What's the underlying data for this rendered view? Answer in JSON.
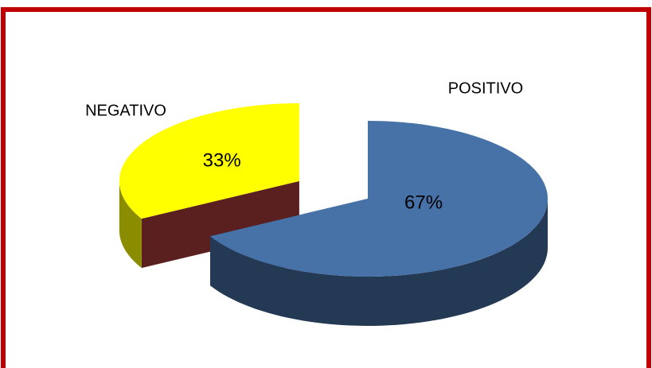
{
  "chart_data": {
    "type": "pie",
    "three_d": true,
    "categories": [
      "POSITIVO",
      "NEGATIVO"
    ],
    "values": [
      67,
      33
    ],
    "value_labels": [
      "67%",
      "33%"
    ],
    "colors": [
      "#4672a8",
      "#ffff00"
    ],
    "exploded": true
  }
}
